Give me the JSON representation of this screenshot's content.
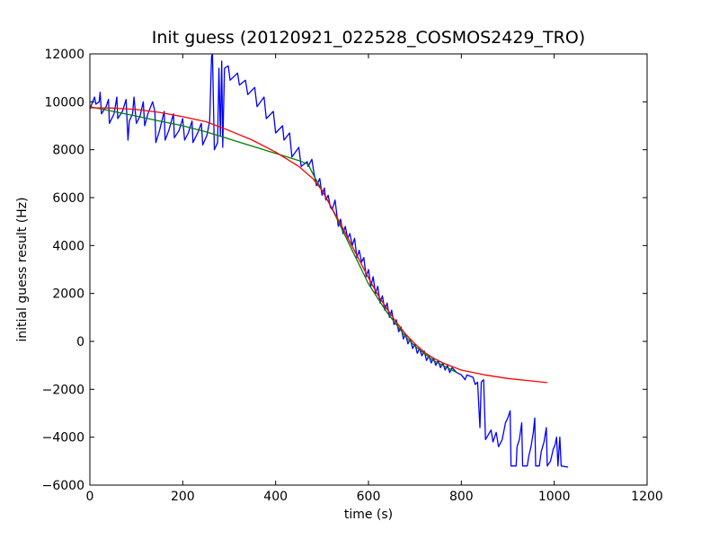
{
  "chart_data": {
    "type": "line",
    "title": "Init guess (20120921_022528_COSMOS2429_TRO)",
    "xlabel": "time (s)",
    "ylabel": "initial guess result (Hz)",
    "xlim": [
      0,
      1200
    ],
    "ylim": [
      -6000,
      12000
    ],
    "xticks": [
      "0",
      "200",
      "400",
      "600",
      "800",
      "1000",
      "1200"
    ],
    "yticks": [
      "12000",
      "10000",
      "8000",
      "6000",
      "4000",
      "2000",
      "0",
      "−2000",
      "−4000",
      "−6000"
    ],
    "grid": false,
    "legend": "none",
    "series": [
      {
        "color": "#0000ff",
        "points": [
          [
            0,
            9700
          ],
          [
            10,
            10200
          ],
          [
            13,
            9900
          ],
          [
            20,
            10000
          ],
          [
            22,
            10400
          ],
          [
            25,
            9500
          ],
          [
            35,
            9800
          ],
          [
            40,
            10100
          ],
          [
            42,
            9100
          ],
          [
            52,
            9500
          ],
          [
            58,
            10200
          ],
          [
            60,
            9300
          ],
          [
            70,
            9600
          ],
          [
            78,
            10100
          ],
          [
            82,
            8400
          ],
          [
            85,
            9200
          ],
          [
            92,
            9500
          ],
          [
            95,
            10200
          ],
          [
            100,
            9100
          ],
          [
            108,
            9400
          ],
          [
            115,
            10000
          ],
          [
            118,
            9000
          ],
          [
            125,
            9500
          ],
          [
            135,
            10000
          ],
          [
            140,
            9600
          ],
          [
            142,
            8300
          ],
          [
            150,
            8800
          ],
          [
            160,
            9600
          ],
          [
            162,
            8400
          ],
          [
            170,
            8800
          ],
          [
            180,
            9500
          ],
          [
            182,
            8500
          ],
          [
            192,
            8800
          ],
          [
            200,
            9300
          ],
          [
            204,
            8400
          ],
          [
            212,
            8700
          ],
          [
            220,
            9200
          ],
          [
            222,
            8300
          ],
          [
            232,
            8700
          ],
          [
            240,
            9100
          ],
          [
            243,
            8200
          ],
          [
            252,
            8600
          ],
          [
            258,
            9200
          ],
          [
            262,
            11900
          ],
          [
            264,
            12000
          ],
          [
            268,
            8000
          ],
          [
            275,
            8300
          ],
          [
            278,
            11400
          ],
          [
            281,
            8600
          ],
          [
            284,
            11700
          ],
          [
            286,
            8100
          ],
          [
            290,
            11400
          ],
          [
            298,
            11500
          ],
          [
            302,
            10900
          ],
          [
            318,
            11200
          ],
          [
            322,
            10700
          ],
          [
            335,
            10900
          ],
          [
            340,
            10300
          ],
          [
            355,
            10600
          ],
          [
            360,
            9800
          ],
          [
            375,
            10200
          ],
          [
            380,
            9300
          ],
          [
            395,
            9600
          ],
          [
            400,
            8700
          ],
          [
            415,
            9000
          ],
          [
            418,
            8400
          ],
          [
            430,
            8700
          ],
          [
            435,
            7700
          ],
          [
            450,
            8100
          ],
          [
            455,
            7300
          ],
          [
            468,
            7500
          ],
          [
            470,
            7300
          ],
          [
            478,
            7600
          ],
          [
            482,
            7100
          ],
          [
            488,
            6500
          ],
          [
            495,
            6800
          ],
          [
            500,
            6100
          ],
          [
            505,
            6400
          ],
          [
            508,
            5900
          ],
          [
            513,
            6100
          ],
          [
            518,
            5600
          ],
          [
            522,
            5500
          ],
          [
            528,
            5900
          ],
          [
            535,
            4800
          ],
          [
            540,
            5100
          ],
          [
            545,
            4500
          ],
          [
            550,
            4800
          ],
          [
            555,
            4300
          ],
          [
            560,
            4500
          ],
          [
            565,
            4000
          ],
          [
            570,
            4300
          ],
          [
            575,
            3500
          ],
          [
            580,
            3800
          ],
          [
            585,
            3300
          ],
          [
            590,
            3500
          ],
          [
            595,
            2700
          ],
          [
            600,
            3000
          ],
          [
            605,
            2300
          ],
          [
            610,
            2700
          ],
          [
            615,
            2000
          ],
          [
            620,
            2300
          ],
          [
            625,
            1600
          ],
          [
            630,
            1900
          ],
          [
            635,
            1300
          ],
          [
            640,
            1600
          ],
          [
            645,
            1000
          ],
          [
            650,
            1300
          ],
          [
            655,
            700
          ],
          [
            660,
            900
          ],
          [
            665,
            400
          ],
          [
            670,
            600
          ],
          [
            675,
            100
          ],
          [
            680,
            300
          ],
          [
            685,
            -100
          ],
          [
            690,
            100
          ],
          [
            695,
            -300
          ],
          [
            700,
            -100
          ],
          [
            705,
            -500
          ],
          [
            710,
            -300
          ],
          [
            715,
            -600
          ],
          [
            720,
            -400
          ],
          [
            725,
            -800
          ],
          [
            730,
            -600
          ],
          [
            735,
            -900
          ],
          [
            740,
            -700
          ],
          [
            745,
            -1000
          ],
          [
            750,
            -800
          ],
          [
            755,
            -1100
          ],
          [
            760,
            -900
          ],
          [
            765,
            -1200
          ],
          [
            770,
            -1000
          ],
          [
            775,
            -1300
          ],
          [
            780,
            -1100
          ],
          [
            790,
            -1300
          ],
          [
            800,
            -1400
          ],
          [
            808,
            -1600
          ],
          [
            812,
            -1400
          ],
          [
            825,
            -1500
          ],
          [
            830,
            -1800
          ],
          [
            835,
            -1700
          ],
          [
            840,
            -3600
          ],
          [
            843,
            -1700
          ],
          [
            848,
            -1600
          ],
          [
            852,
            -4100
          ],
          [
            858,
            -3900
          ],
          [
            864,
            -3700
          ],
          [
            868,
            -4200
          ],
          [
            875,
            -3800
          ],
          [
            880,
            -4400
          ],
          [
            888,
            -4100
          ],
          [
            895,
            -3400
          ],
          [
            900,
            -3200
          ],
          [
            905,
            -2900
          ],
          [
            907,
            -5200
          ],
          [
            918,
            -5200
          ],
          [
            920,
            -4400
          ],
          [
            925,
            -4100
          ],
          [
            930,
            -3400
          ],
          [
            932,
            -5200
          ],
          [
            942,
            -5200
          ],
          [
            945,
            -4800
          ],
          [
            950,
            -4400
          ],
          [
            955,
            -3800
          ],
          [
            958,
            -3200
          ],
          [
            960,
            -5200
          ],
          [
            968,
            -5200
          ],
          [
            972,
            -4600
          ],
          [
            978,
            -4200
          ],
          [
            983,
            -3600
          ],
          [
            985,
            -5200
          ],
          [
            992,
            -5000
          ],
          [
            998,
            -4500
          ],
          [
            1002,
            -4300
          ],
          [
            1005,
            -4000
          ],
          [
            1008,
            -5200
          ],
          [
            1012,
            -4000
          ],
          [
            1015,
            -5200
          ],
          [
            1030,
            -5250
          ]
        ]
      },
      {
        "color": "#008000",
        "points": [
          [
            0,
            9800
          ],
          [
            50,
            9600
          ],
          [
            100,
            9400
          ],
          [
            150,
            9200
          ],
          [
            200,
            9000
          ],
          [
            250,
            8750
          ],
          [
            300,
            8450
          ],
          [
            350,
            8150
          ],
          [
            400,
            7850
          ],
          [
            450,
            7550
          ],
          [
            470,
            7400
          ],
          [
            480,
            7000
          ],
          [
            500,
            6300
          ],
          [
            520,
            5600
          ],
          [
            540,
            4800
          ],
          [
            560,
            4000
          ],
          [
            580,
            3200
          ],
          [
            600,
            2400
          ],
          [
            620,
            1800
          ],
          [
            640,
            1200
          ],
          [
            660,
            700
          ],
          [
            680,
            200
          ],
          [
            700,
            -200
          ],
          [
            720,
            -500
          ],
          [
            740,
            -800
          ],
          [
            760,
            -1000
          ],
          [
            780,
            -1200
          ],
          [
            790,
            -1300
          ]
        ]
      },
      {
        "color": "#ff0000",
        "points": [
          [
            0,
            9750
          ],
          [
            50,
            9740
          ],
          [
            100,
            9680
          ],
          [
            150,
            9560
          ],
          [
            200,
            9380
          ],
          [
            250,
            9170
          ],
          [
            300,
            8800
          ],
          [
            350,
            8400
          ],
          [
            400,
            7900
          ],
          [
            450,
            7300
          ],
          [
            480,
            6800
          ],
          [
            500,
            6300
          ],
          [
            520,
            5600
          ],
          [
            540,
            4900
          ],
          [
            560,
            4150
          ],
          [
            580,
            3400
          ],
          [
            600,
            2650
          ],
          [
            620,
            1950
          ],
          [
            640,
            1350
          ],
          [
            660,
            800
          ],
          [
            680,
            300
          ],
          [
            700,
            -100
          ],
          [
            720,
            -450
          ],
          [
            740,
            -700
          ],
          [
            760,
            -900
          ],
          [
            780,
            -1050
          ],
          [
            800,
            -1200
          ],
          [
            850,
            -1400
          ],
          [
            900,
            -1550
          ],
          [
            950,
            -1650
          ],
          [
            985,
            -1720
          ]
        ]
      }
    ]
  }
}
